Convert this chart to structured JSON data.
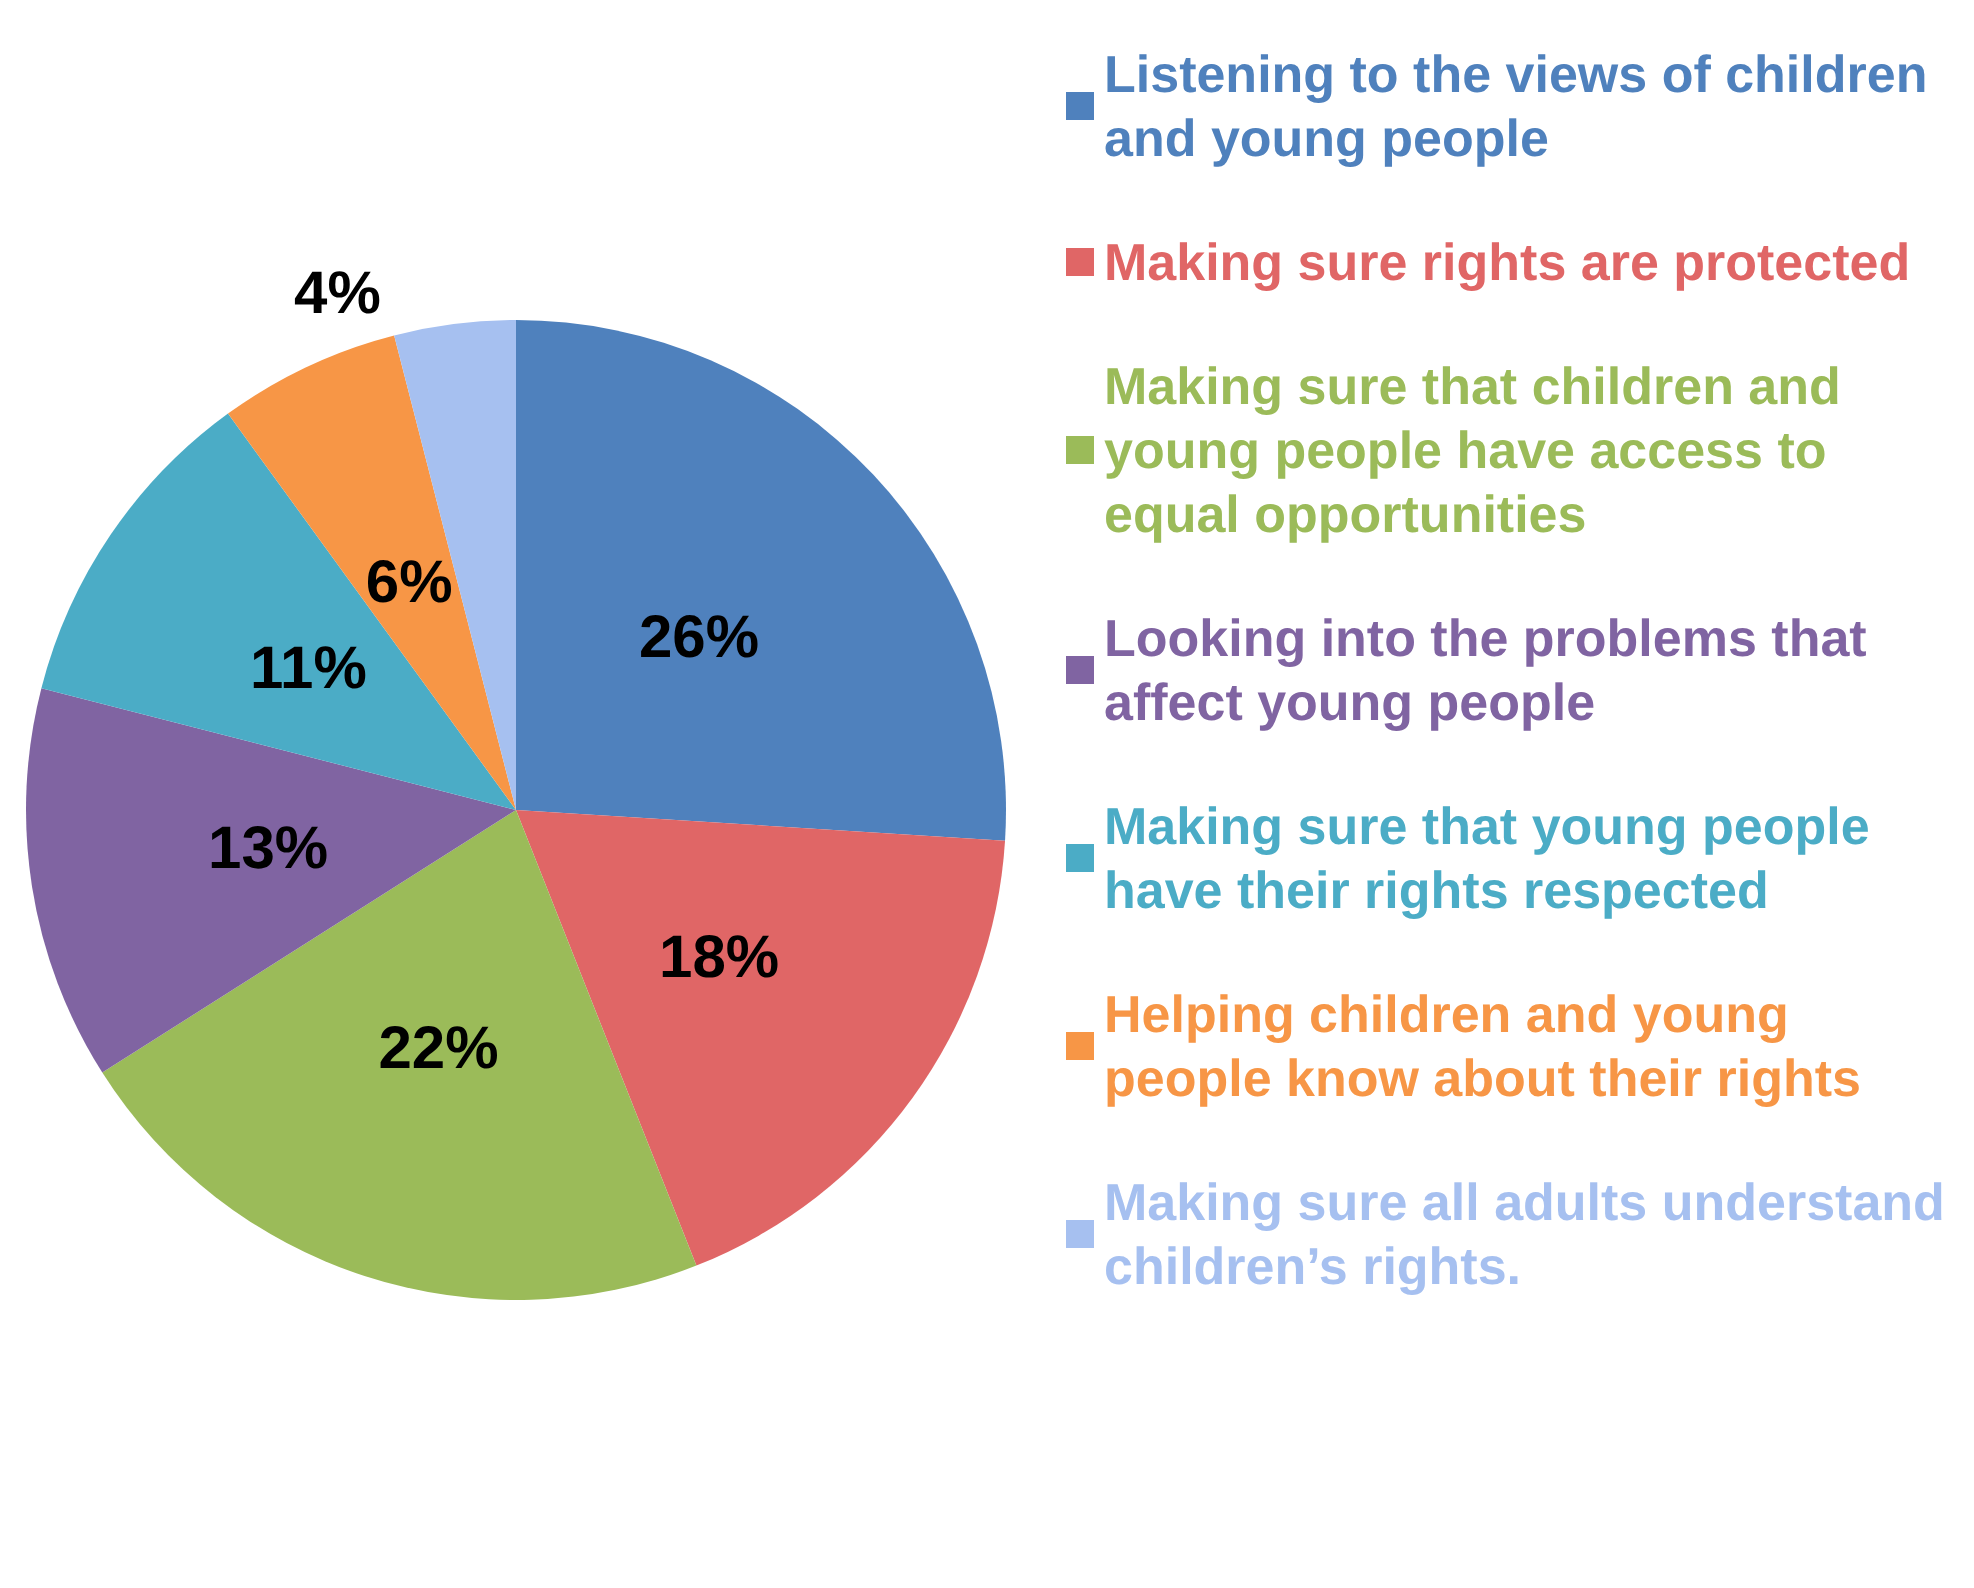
{
  "chart_data": {
    "type": "pie",
    "categories": [
      "Listening to the views of children and young people",
      "Making sure rights are protected",
      "Making sure that children and young people have access to equal opportunities",
      "Looking into the problems that affect young people",
      "Making sure that young people have their rights respected",
      "Helping children and young people know about their rights",
      "Making sure all adults understand children’s rights."
    ],
    "values": [
      26,
      18,
      22,
      13,
      11,
      6,
      4
    ],
    "value_labels": [
      "26%",
      "18%",
      "22%",
      "13%",
      "11%",
      "6%",
      "4%"
    ],
    "colors": [
      "#4f81bd",
      "#e06666",
      "#9bbb59",
      "#8064a2",
      "#4bacc6",
      "#f79646",
      "#a6c0f0"
    ],
    "legend": "right"
  }
}
